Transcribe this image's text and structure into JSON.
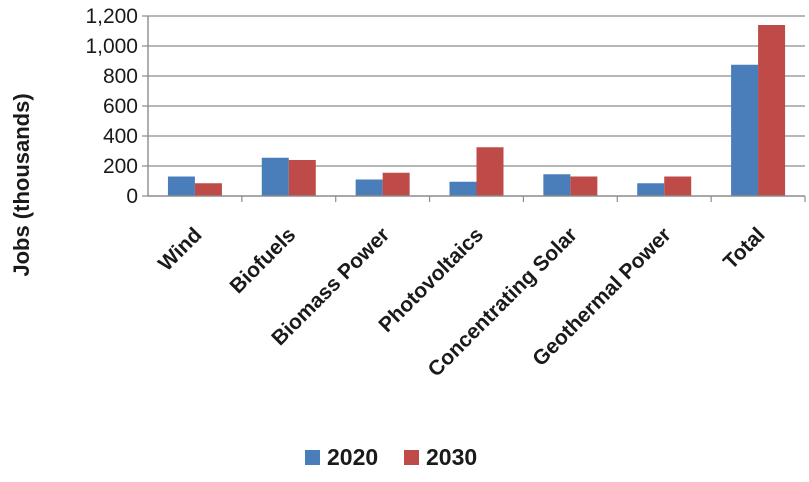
{
  "chart_data": {
    "type": "bar",
    "categories": [
      "Wind",
      "Biofuels",
      "Biomass Power",
      "Photovoltaics",
      "Concentrating Solar",
      "Geothermal Power",
      "Total"
    ],
    "series": [
      {
        "name": "2020",
        "values": [
          130,
          255,
          110,
          95,
          145,
          85,
          875
        ],
        "color": "#4a7ebb"
      },
      {
        "name": "2030",
        "values": [
          85,
          240,
          155,
          325,
          130,
          130,
          1140
        ],
        "color": "#be4b48"
      }
    ],
    "title": "",
    "xlabel": "",
    "ylabel": "Jobs (thousands)",
    "ylim": [
      0,
      1200
    ],
    "yticks": [
      0,
      200,
      400,
      600,
      800,
      1000,
      1200
    ],
    "ytick_labels": [
      "0",
      "200",
      "400",
      "600",
      "800",
      "1,000",
      "1,200"
    ],
    "grid": true,
    "legend_position": "bottom"
  }
}
